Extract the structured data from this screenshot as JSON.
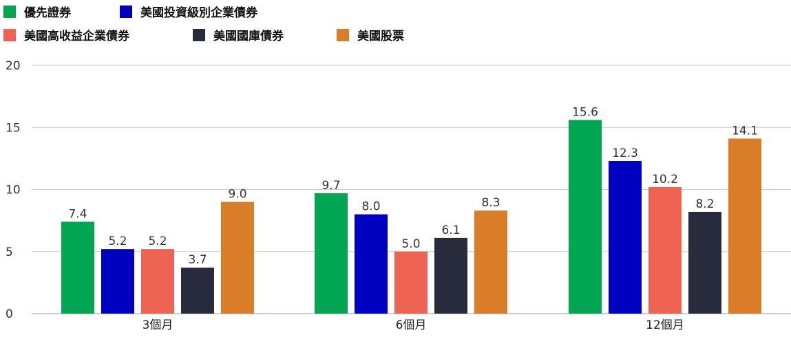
{
  "chart_data": {
    "type": "bar",
    "categories": [
      "3個月",
      "6個月",
      "12個月"
    ],
    "series": [
      {
        "name": "優先證券",
        "color": "#00A651",
        "values": [
          7.4,
          9.7,
          15.6
        ]
      },
      {
        "name": "美國投資級別企業債券",
        "color": "#0000C0",
        "values": [
          5.2,
          8.0,
          12.3
        ]
      },
      {
        "name": "美國高收益企業債券",
        "color": "#EE6352",
        "values": [
          5.2,
          5.0,
          10.2
        ]
      },
      {
        "name": "美國國庫債券",
        "color": "#272B3B",
        "values": [
          3.7,
          6.1,
          8.2
        ]
      },
      {
        "name": "美國股票",
        "color": "#D97D29",
        "values": [
          9.0,
          8.3,
          14.1
        ]
      }
    ],
    "value_labels": [
      [
        "7.4",
        "9.7",
        "15.6"
      ],
      [
        "5.2",
        "8.0",
        "12.3"
      ],
      [
        "5.2",
        "5.0",
        "10.2"
      ],
      [
        "3.7",
        "6.1",
        "8.2"
      ],
      [
        "9.0",
        "8.3",
        "14.1"
      ]
    ],
    "yticks": [
      0,
      5,
      10,
      15,
      20
    ],
    "ylim": [
      0,
      20
    ],
    "grid": true,
    "legend_position": "top-left",
    "title": "",
    "xlabel": "",
    "ylabel": ""
  }
}
